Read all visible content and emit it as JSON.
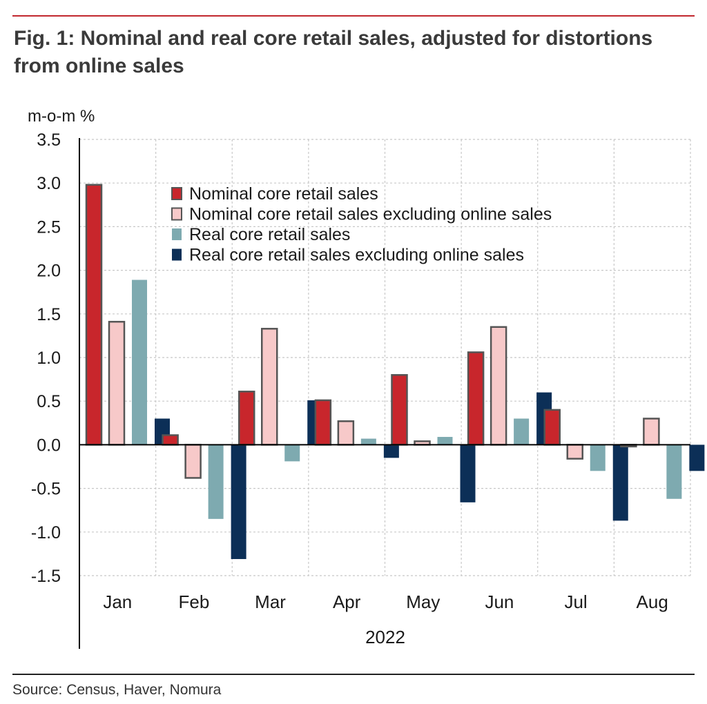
{
  "title": "Fig. 1: Nominal and real core retail sales, adjusted for distortions from online sales",
  "source": "Source: Census, Haver, Nomura",
  "chart_data": {
    "type": "bar",
    "title": "Fig. 1: Nominal and real core retail sales, adjusted for distortions from online sales",
    "ylabel": "m-o-m %",
    "xlabel": "2022",
    "ylim": [
      -1.5,
      3.5
    ],
    "yticks": [
      "3.5",
      "3.0",
      "2.5",
      "2.0",
      "1.5",
      "1.0",
      "0.5",
      "0.0",
      "-0.5",
      "-1.0",
      "-1.5"
    ],
    "grid": true,
    "legend_position": "top-center",
    "categories": [
      "Jan",
      "Feb",
      "Mar",
      "Apr",
      "May",
      "Jun",
      "Jul",
      "Aug"
    ],
    "series": [
      {
        "name": "Nominal core retail sales",
        "color": "#c8262c",
        "stroke": "#555555",
        "values": [
          2.98,
          0.11,
          0.61,
          0.51,
          0.8,
          1.06,
          0.4,
          -0.02
        ]
      },
      {
        "name": "Nominal core retail sales excluding online sales",
        "color": "#f7c9c9",
        "stroke": "#555555",
        "values": [
          1.41,
          -0.38,
          1.33,
          0.27,
          0.04,
          1.35,
          -0.16,
          0.3
        ]
      },
      {
        "name": "Real core retail sales",
        "color": "#7eaab0",
        "stroke": "none",
        "values": [
          1.89,
          -0.85,
          -0.19,
          0.07,
          0.09,
          0.3,
          -0.3,
          -0.62
        ]
      },
      {
        "name": "Real core retail sales excluding online sales",
        "color": "#0c2f57",
        "stroke": "none",
        "values": [
          0.3,
          -1.31,
          0.51,
          -0.15,
          -0.66,
          0.6,
          -0.87,
          -0.3
        ]
      }
    ]
  }
}
